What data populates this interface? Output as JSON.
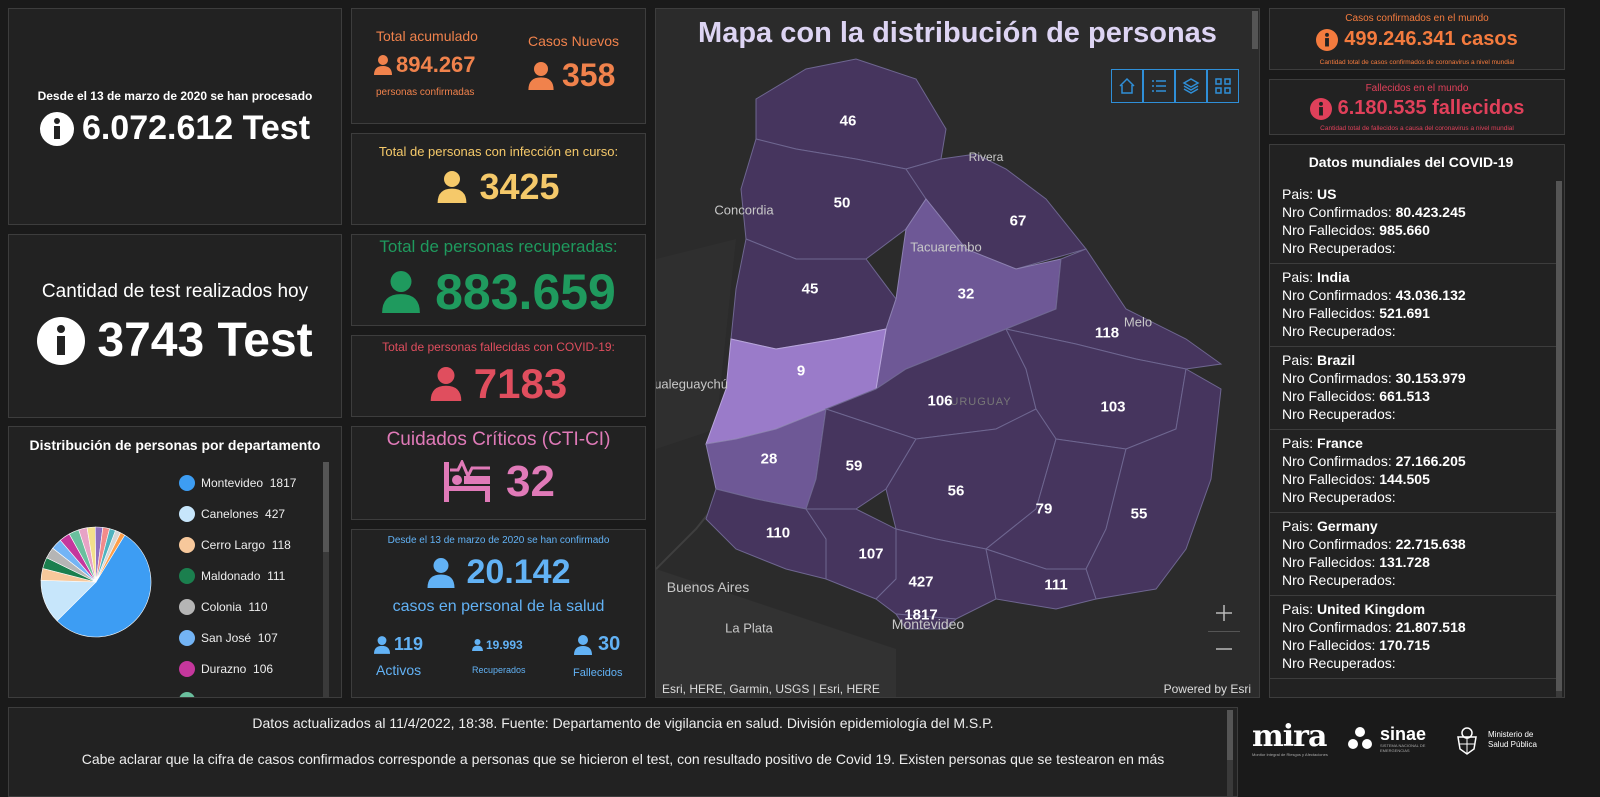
{
  "tests_total": {
    "caption": "Desde el 13 de marzo de 2020 se han procesado",
    "value": "6.072.612 Test"
  },
  "tests_today": {
    "caption": "Cantidad de test realizados hoy",
    "value": "3743 Test"
  },
  "accumulated": {
    "title": "Total acumulado",
    "value": "894.267",
    "subtitle": "personas confirmadas"
  },
  "new_cases": {
    "title": "Casos Nuevos",
    "value": "358"
  },
  "active": {
    "title": "Total de personas con infección en curso:",
    "value": "3425"
  },
  "recovered": {
    "title": "Total de personas recuperadas:",
    "value": "883.659"
  },
  "deceased": {
    "title": "Total de personas fallecidas con COVID-19:",
    "value": "7183"
  },
  "critical": {
    "title": "Cuidados Críticos (CTI-CI)",
    "value": "32"
  },
  "health_staff": {
    "caption": "Desde el 13 de marzo de 2020 se han confirmado",
    "value": "20.142",
    "subtitle": "casos en personal de la salud",
    "active_value": "119",
    "active_label": "Activos",
    "recovered_value": "19.993",
    "recovered_label": "Recuperados",
    "deceased_value": "30",
    "deceased_label": "Fallecidos"
  },
  "distribution": {
    "title": "Distribución de personas por departamento",
    "items": [
      {
        "label": "Montevideo",
        "value": "1817",
        "color": "#3d9df3"
      },
      {
        "label": "Canelones",
        "value": "427",
        "color": "#c7e6fb"
      },
      {
        "label": "Cerro Largo",
        "value": "118",
        "color": "#f7c89b"
      },
      {
        "label": "Maldonado",
        "value": "111",
        "color": "#1b7f4e"
      },
      {
        "label": "Colonia",
        "value": "110",
        "color": "#b5b5b5"
      },
      {
        "label": "San José",
        "value": "107",
        "color": "#73b4f5"
      },
      {
        "label": "Durazno",
        "value": "106",
        "color": "#c5379d"
      }
    ]
  },
  "map": {
    "title": "Mapa con la distribución de personas",
    "attribution": "Esri, HERE, Garmin, USGS | Esri, HERE",
    "powered": "Powered by Esri",
    "values": [
      "46",
      "50",
      "67",
      "45",
      "32",
      "118",
      "9",
      "106",
      "103",
      "28",
      "59",
      "56",
      "79",
      "55",
      "110",
      "107",
      "427",
      "111",
      "1817"
    ],
    "cities": [
      "Concordia",
      "Rivera",
      "Tacuarembo",
      "Melo",
      "Gualeguaychú",
      "Buenos Aires",
      "La Plata",
      "Montevideo",
      "URUGUAY"
    ],
    "fill_colors": {
      "base": "#46355e",
      "medium": "#6e5896",
      "light": "#9a7bc9"
    }
  },
  "world_confirmed": {
    "title": "Casos confirmados en el mundo",
    "value": "499.246.341 casos",
    "subtitle": "Cantidad total de casos confirmados de coronavirus a nivel mundial"
  },
  "world_deaths": {
    "title": "Fallecidos en el mundo",
    "value": "6.180.535 fallecidos",
    "subtitle": "Cantidad total de fallecidos a causa del coronavirus a nivel mundial"
  },
  "world_data": {
    "title": "Datos mundiales del COVID-19",
    "labels": {
      "country": "Pais:",
      "confirmed": "Nro Confirmados:",
      "deaths": "Nro Fallecidos:",
      "recovered": "Nro Recuperados:"
    },
    "countries": [
      {
        "name": "US",
        "confirmed": "80.423.245",
        "deaths": "985.660",
        "recovered": ""
      },
      {
        "name": "India",
        "confirmed": "43.036.132",
        "deaths": "521.691",
        "recovered": ""
      },
      {
        "name": "Brazil",
        "confirmed": "30.153.979",
        "deaths": "661.513",
        "recovered": ""
      },
      {
        "name": "France",
        "confirmed": "27.166.205",
        "deaths": "144.505",
        "recovered": ""
      },
      {
        "name": "Germany",
        "confirmed": "22.715.638",
        "deaths": "131.728",
        "recovered": ""
      },
      {
        "name": "United Kingdom",
        "confirmed": "21.807.518",
        "deaths": "170.715",
        "recovered": ""
      }
    ]
  },
  "footer": {
    "line1": "Datos actualizados al 11/4/2022, 18:38. Fuente: Departamento de vigilancia en salud. División epidemiología del M.S.P.",
    "line2": "Cabe aclarar que la cifra de casos confirmados corresponde a personas que se hicieron el test, con resultado positivo de Covid 19. Existen personas que se testearon en más"
  },
  "logos": {
    "mira": "mira",
    "mira_sub": "Monitor Integral de Riesgos y Afectaciones",
    "sinae": "sinae",
    "sinae_sub": "SISTEMA NACIONAL DE EMERGENCIAS",
    "msp": "Ministerio de Salud Pública"
  },
  "colors": {
    "orange": "#f0824c",
    "yellow": "#f5c96a",
    "green": "#1f9a5e",
    "red": "#e04e5e",
    "pink": "#e07ab8",
    "blue": "#62b2f5",
    "world_orange": "#f47b3e",
    "world_red": "#e0405a"
  }
}
